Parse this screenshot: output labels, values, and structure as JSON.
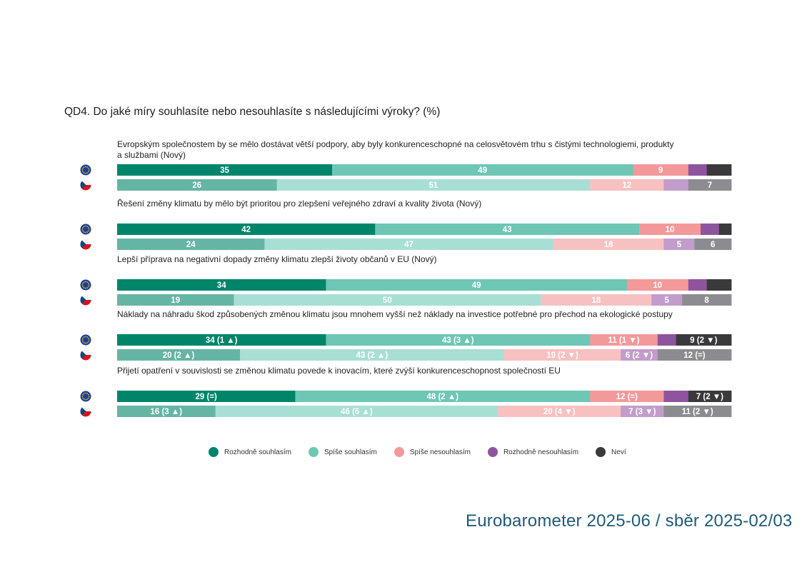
{
  "title": "QD4. Do jaké míry souhlasíte nebo nesouhlasíte s následujícími výroky? (%)",
  "footer": "Eurobarometer 2025-06 / sběr 2025-02/03",
  "colors": {
    "eu": [
      "#00856a",
      "#6ec6b4",
      "#f3999a",
      "#8e559e",
      "#3a3a3c"
    ],
    "cz": [
      "#65b5a4",
      "#a8dfd5",
      "#f8c1c1",
      "#c29ccb",
      "#8c8c90"
    ],
    "eu_text": [
      "#ffffff",
      "#ffffff",
      "#ffffff",
      "#ffffff",
      "#ffffff"
    ],
    "cz_text": [
      "#ffffff",
      "#ffffff",
      "#ffffff",
      "#ffffff",
      "#ffffff"
    ]
  },
  "chart_data": {
    "type": "bar",
    "orientation": "horizontal",
    "stacked": true,
    "title": "QD4. Do jaké míry souhlasíte nebo nesouhlasíte s následujícími výroky? (%)",
    "series_names": [
      "Rozhodně souhlasím",
      "Spíše souhlasím",
      "Spíše nesouhlasím",
      "Rozhodně nesouhlasím",
      "Neví"
    ],
    "legend_position": "bottom",
    "questions": [
      {
        "text_lines": [
          "Evropským společnostem by se mělo dostávat větší podpory, aby byly konkurenceschopné na celosvětovém trhu s čistými technologiemi, produkty",
          "a službami (Nový)"
        ],
        "eu": {
          "values": [
            35,
            49,
            9,
            3,
            4
          ],
          "labels": [
            "35",
            "49",
            "9",
            "",
            ""
          ]
        },
        "cz": {
          "values": [
            26,
            51,
            12,
            4,
            7
          ],
          "labels": [
            "26",
            "51",
            "12",
            "",
            "7"
          ]
        }
      },
      {
        "text_lines": [
          "Řešení změny klimatu by mělo být prioritou pro zlepšení veřejného zdraví a kvality života (Nový)"
        ],
        "eu": {
          "values": [
            42,
            43,
            10,
            3,
            2
          ],
          "labels": [
            "42",
            "43",
            "10",
            "",
            ""
          ]
        },
        "cz": {
          "values": [
            24,
            47,
            18,
            5,
            6
          ],
          "labels": [
            "24",
            "47",
            "18",
            "5",
            "6"
          ]
        }
      },
      {
        "text_lines": [
          "Lepší příprava na negativní dopady změny klimatu zlepší životy občanů v EU (Nový)"
        ],
        "eu": {
          "values": [
            34,
            49,
            10,
            3,
            4
          ],
          "labels": [
            "34",
            "49",
            "10",
            "",
            ""
          ]
        },
        "cz": {
          "values": [
            19,
            50,
            18,
            5,
            8
          ],
          "labels": [
            "19",
            "50",
            "18",
            "5",
            "8"
          ]
        }
      },
      {
        "text_lines": [
          "Náklady na náhradu škod způsobených změnou klimatu jsou mnohem vyšší než náklady na investice potřebné pro přechod na ekologické postupy"
        ],
        "eu": {
          "values": [
            34,
            43,
            11,
            3,
            9
          ],
          "labels": [
            "34 (1 ▲)",
            "43 (3 ▲)",
            "11 (1 ▼)",
            "",
            "9 (2 ▼)"
          ]
        },
        "cz": {
          "values": [
            20,
            43,
            19,
            6,
            12
          ],
          "labels": [
            "20 (2 ▲)",
            "43 (2 ▲)",
            "19 (2 ▼)",
            "6 (2 ▼)",
            "12 (=)"
          ]
        }
      },
      {
        "text_lines": [
          "Přijetí opatření v souvislosti se změnou klimatu povede k inovacím, které zvýší konkurenceschopnost společností EU"
        ],
        "eu": {
          "values": [
            29,
            48,
            12,
            4,
            7
          ],
          "labels": [
            "29 (=)",
            "48 (2 ▲)",
            "12 (=)",
            "",
            "7 (2 ▼)"
          ]
        },
        "cz": {
          "values": [
            16,
            46,
            20,
            7,
            11
          ],
          "labels": [
            "16 (3 ▲)",
            "46 (6 ▲)",
            "20 (4 ▼)",
            "7 (3 ▼)",
            "11 (2 ▼)"
          ]
        }
      }
    ]
  }
}
